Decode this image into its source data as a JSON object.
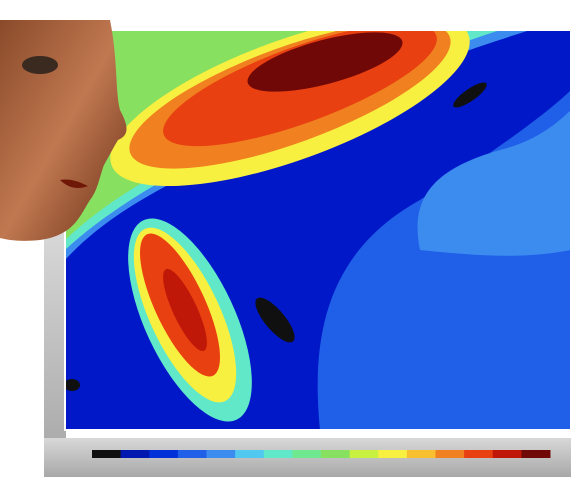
{
  "colorbar": {
    "colors": [
      "#101010",
      "#0018b0",
      "#0030d8",
      "#2060e8",
      "#3c8cf0",
      "#50c8f0",
      "#60e8c8",
      "#70e890",
      "#88e060",
      "#c8f040",
      "#f8f040",
      "#f8c030",
      "#f08020",
      "#e84010",
      "#c01808",
      "#700808"
    ]
  }
}
